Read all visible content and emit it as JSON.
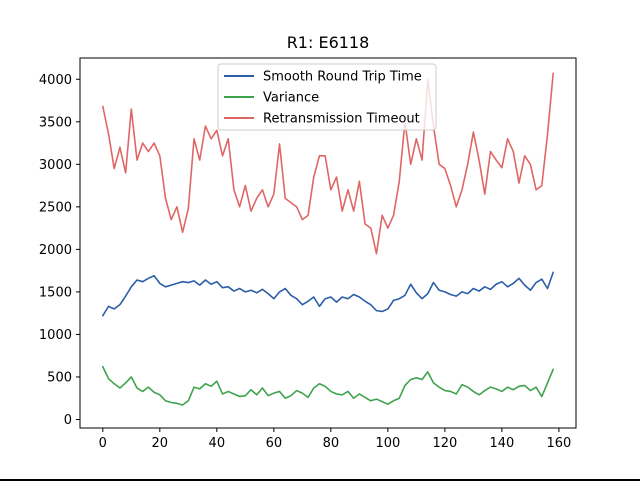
{
  "chart_data": {
    "type": "line",
    "title": "R1: E6118",
    "xlabel": "",
    "ylabel": "",
    "xlim": [
      -8,
      166
    ],
    "ylim": [
      -100,
      4250
    ],
    "xticks": [
      0,
      20,
      40,
      60,
      80,
      100,
      120,
      140,
      160
    ],
    "yticks": [
      0,
      500,
      1000,
      1500,
      2000,
      2500,
      3000,
      3500,
      4000
    ],
    "grid": false,
    "legend_position": "top-center",
    "series": [
      {
        "name": "Smooth Round Trip Time",
        "color": "#2c5ea8",
        "x": [
          0,
          2,
          4,
          6,
          8,
          10,
          12,
          14,
          16,
          18,
          20,
          22,
          24,
          26,
          28,
          30,
          32,
          34,
          36,
          38,
          40,
          42,
          44,
          46,
          48,
          50,
          52,
          54,
          56,
          58,
          60,
          62,
          64,
          66,
          68,
          70,
          72,
          74,
          76,
          78,
          80,
          82,
          84,
          86,
          88,
          90,
          92,
          94,
          96,
          98,
          100,
          102,
          104,
          106,
          108,
          110,
          112,
          114,
          116,
          118,
          120,
          122,
          124,
          126,
          128,
          130,
          132,
          134,
          136,
          138,
          140,
          142,
          144,
          146,
          148,
          150,
          152,
          154,
          156,
          158
        ],
        "y": [
          1220,
          1330,
          1300,
          1350,
          1450,
          1560,
          1640,
          1620,
          1660,
          1690,
          1600,
          1560,
          1580,
          1600,
          1620,
          1610,
          1630,
          1580,
          1640,
          1590,
          1620,
          1550,
          1560,
          1510,
          1540,
          1500,
          1520,
          1490,
          1530,
          1480,
          1420,
          1500,
          1540,
          1460,
          1420,
          1350,
          1390,
          1440,
          1330,
          1420,
          1440,
          1380,
          1440,
          1420,
          1470,
          1440,
          1390,
          1350,
          1280,
          1270,
          1300,
          1400,
          1420,
          1460,
          1590,
          1490,
          1420,
          1480,
          1610,
          1520,
          1500,
          1470,
          1450,
          1500,
          1480,
          1540,
          1510,
          1560,
          1530,
          1590,
          1620,
          1560,
          1600,
          1660,
          1580,
          1520,
          1610,
          1650,
          1540,
          1730
        ],
        "y_unit": "ms"
      },
      {
        "name": "Variance",
        "color": "#3fa34d",
        "x": [
          0,
          2,
          4,
          6,
          8,
          10,
          12,
          14,
          16,
          18,
          20,
          22,
          24,
          26,
          28,
          30,
          32,
          34,
          36,
          38,
          40,
          42,
          44,
          46,
          48,
          50,
          52,
          54,
          56,
          58,
          60,
          62,
          64,
          66,
          68,
          70,
          72,
          74,
          76,
          78,
          80,
          82,
          84,
          86,
          88,
          90,
          92,
          94,
          96,
          98,
          100,
          102,
          104,
          106,
          108,
          110,
          112,
          114,
          116,
          118,
          120,
          122,
          124,
          126,
          128,
          130,
          132,
          134,
          136,
          138,
          140,
          142,
          144,
          146,
          148,
          150,
          152,
          154,
          156,
          158
        ],
        "y": [
          620,
          480,
          420,
          370,
          430,
          500,
          370,
          330,
          380,
          320,
          290,
          220,
          200,
          190,
          170,
          220,
          380,
          360,
          420,
          390,
          450,
          300,
          330,
          300,
          270,
          280,
          350,
          290,
          370,
          280,
          310,
          330,
          250,
          280,
          340,
          310,
          260,
          370,
          420,
          390,
          330,
          300,
          290,
          330,
          250,
          300,
          260,
          220,
          240,
          210,
          180,
          220,
          250,
          400,
          470,
          490,
          470,
          560,
          430,
          380,
          340,
          330,
          300,
          410,
          380,
          330,
          290,
          340,
          380,
          360,
          330,
          380,
          350,
          390,
          400,
          340,
          380,
          270,
          430,
          590
        ],
        "y_unit": "ms"
      },
      {
        "name": "Retransmission Timeout",
        "color": "#e06666",
        "x": [
          0,
          2,
          4,
          6,
          8,
          10,
          12,
          14,
          16,
          18,
          20,
          22,
          24,
          26,
          28,
          30,
          32,
          34,
          36,
          38,
          40,
          42,
          44,
          46,
          48,
          50,
          52,
          54,
          56,
          58,
          60,
          62,
          64,
          66,
          68,
          70,
          72,
          74,
          76,
          78,
          80,
          82,
          84,
          86,
          88,
          90,
          92,
          94,
          96,
          98,
          100,
          102,
          104,
          106,
          108,
          110,
          112,
          114,
          116,
          118,
          120,
          122,
          124,
          126,
          128,
          130,
          132,
          134,
          136,
          138,
          140,
          142,
          144,
          146,
          148,
          150,
          152,
          154,
          156,
          158
        ],
        "y": [
          3680,
          3360,
          2950,
          3200,
          2900,
          3650,
          3050,
          3250,
          3150,
          3250,
          3100,
          2600,
          2350,
          2500,
          2200,
          2480,
          3300,
          3050,
          3450,
          3300,
          3400,
          3100,
          3300,
          2700,
          2500,
          2750,
          2450,
          2600,
          2700,
          2500,
          2650,
          3240,
          2600,
          2550,
          2500,
          2350,
          2400,
          2850,
          3100,
          3100,
          2700,
          2850,
          2450,
          2700,
          2450,
          2800,
          2300,
          2250,
          1950,
          2400,
          2250,
          2400,
          2800,
          3500,
          3000,
          3300,
          3050,
          4000,
          3450,
          3000,
          2950,
          2750,
          2500,
          2700,
          3000,
          3380,
          3050,
          2650,
          3150,
          3050,
          2960,
          3300,
          3150,
          2780,
          3100,
          3000,
          2700,
          2750,
          3350,
          4070
        ],
        "y_unit": "ms"
      }
    ]
  }
}
